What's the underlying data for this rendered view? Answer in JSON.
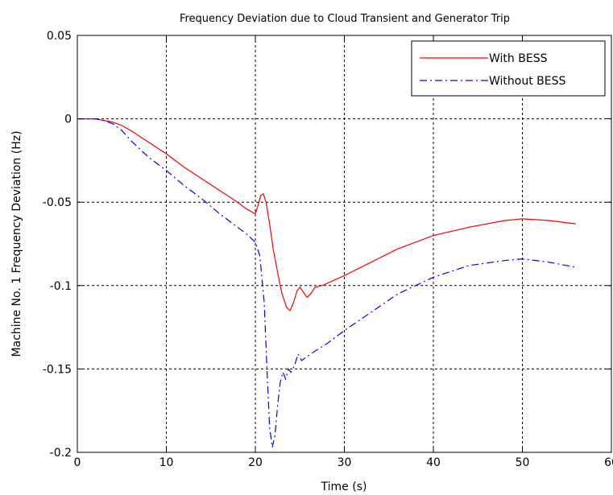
{
  "chart_data": {
    "type": "line",
    "title": "Frequency Deviation due to Cloud Transient and Generator Trip",
    "xlabel": "Time (s)",
    "ylabel": "Machine No. 1 Frequency Deviation (Hz)",
    "xlim": [
      0,
      60
    ],
    "ylim": [
      -0.2,
      0.05
    ],
    "xticks": [
      0,
      10,
      20,
      30,
      40,
      50,
      60
    ],
    "xtick_labels": [
      "0",
      "10",
      "20",
      "30",
      "40",
      "50",
      "60"
    ],
    "yticks": [
      0.05,
      0,
      -0.05,
      -0.1,
      -0.15,
      -0.2
    ],
    "ytick_labels": [
      "0.05",
      "0",
      "-0.05",
      "-0.1",
      "-0.15",
      "-0.2"
    ],
    "grid": true,
    "legend_position": "top-right",
    "series": [
      {
        "name": "With BESS",
        "color": "#ff0000",
        "line_style": "solid",
        "points": [
          [
            0,
            0
          ],
          [
            2,
            0
          ],
          [
            3,
            -0.001
          ],
          [
            4,
            -0.002
          ],
          [
            5,
            -0.004
          ],
          [
            6,
            -0.007
          ],
          [
            8,
            -0.014
          ],
          [
            10,
            -0.021
          ],
          [
            12,
            -0.029
          ],
          [
            14,
            -0.036
          ],
          [
            16,
            -0.043
          ],
          [
            18,
            -0.05
          ],
          [
            19,
            -0.054
          ],
          [
            20,
            -0.057
          ],
          [
            20.3,
            -0.052
          ],
          [
            20.6,
            -0.046
          ],
          [
            20.9,
            -0.045
          ],
          [
            21.2,
            -0.05
          ],
          [
            21.6,
            -0.063
          ],
          [
            22,
            -0.078
          ],
          [
            22.5,
            -0.092
          ],
          [
            23,
            -0.105
          ],
          [
            23.5,
            -0.113
          ],
          [
            23.9,
            -0.115
          ],
          [
            24.3,
            -0.11
          ],
          [
            24.7,
            -0.103
          ],
          [
            25,
            -0.101
          ],
          [
            25.4,
            -0.104
          ],
          [
            25.8,
            -0.107
          ],
          [
            26.2,
            -0.105
          ],
          [
            26.7,
            -0.101
          ],
          [
            27.5,
            -0.1
          ],
          [
            30,
            -0.094
          ],
          [
            33,
            -0.086
          ],
          [
            36,
            -0.078
          ],
          [
            40,
            -0.07
          ],
          [
            44,
            -0.065
          ],
          [
            48,
            -0.061
          ],
          [
            50,
            -0.06
          ],
          [
            53,
            -0.061
          ],
          [
            56,
            -0.063
          ]
        ]
      },
      {
        "name": "Without BESS",
        "color": "#0000ff",
        "line_style": "dash-dot",
        "points": [
          [
            0,
            0
          ],
          [
            2,
            0
          ],
          [
            3,
            -0.001
          ],
          [
            4,
            -0.003
          ],
          [
            5,
            -0.007
          ],
          [
            6,
            -0.013
          ],
          [
            8,
            -0.023
          ],
          [
            10,
            -0.031
          ],
          [
            12,
            -0.04
          ],
          [
            14,
            -0.048
          ],
          [
            16,
            -0.057
          ],
          [
            18,
            -0.065
          ],
          [
            19,
            -0.069
          ],
          [
            20,
            -0.074
          ],
          [
            20.5,
            -0.082
          ],
          [
            21,
            -0.11
          ],
          [
            21.3,
            -0.15
          ],
          [
            21.6,
            -0.185
          ],
          [
            21.9,
            -0.197
          ],
          [
            22.2,
            -0.19
          ],
          [
            22.5,
            -0.172
          ],
          [
            22.8,
            -0.158
          ],
          [
            23.1,
            -0.152
          ],
          [
            23.4,
            -0.156
          ],
          [
            23.7,
            -0.15
          ],
          [
            24,
            -0.152
          ],
          [
            24.4,
            -0.148
          ],
          [
            24.8,
            -0.141
          ],
          [
            25.2,
            -0.145
          ],
          [
            25.7,
            -0.143
          ],
          [
            26.5,
            -0.14
          ],
          [
            28,
            -0.135
          ],
          [
            30,
            -0.127
          ],
          [
            33,
            -0.116
          ],
          [
            36,
            -0.105
          ],
          [
            40,
            -0.095
          ],
          [
            44,
            -0.088
          ],
          [
            48,
            -0.085
          ],
          [
            50,
            -0.084
          ],
          [
            53,
            -0.086
          ],
          [
            56,
            -0.089
          ]
        ]
      }
    ]
  }
}
